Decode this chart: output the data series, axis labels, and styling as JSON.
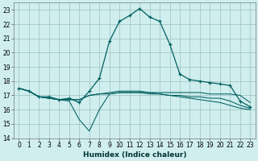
{
  "title": "",
  "xlabel": "Humidex (Indice chaleur)",
  "x": [
    0,
    1,
    2,
    3,
    4,
    5,
    6,
    7,
    8,
    9,
    10,
    11,
    12,
    13,
    14,
    15,
    16,
    17,
    18,
    19,
    20,
    21,
    22,
    23
  ],
  "line1": [
    17.5,
    17.3,
    16.9,
    16.9,
    16.7,
    16.8,
    16.5,
    17.3,
    18.2,
    20.8,
    22.2,
    22.6,
    23.1,
    22.5,
    22.2,
    20.6,
    18.5,
    18.1,
    18.0,
    17.9,
    17.8,
    17.7,
    16.6,
    16.2
  ],
  "line2": [
    17.5,
    17.3,
    16.9,
    16.8,
    16.7,
    16.6,
    15.3,
    14.5,
    16.0,
    17.1,
    17.2,
    17.2,
    17.2,
    17.2,
    17.2,
    17.2,
    17.2,
    17.2,
    17.2,
    17.1,
    17.1,
    17.1,
    17.0,
    16.5
  ],
  "line3": [
    17.5,
    17.3,
    16.9,
    16.8,
    16.7,
    16.7,
    16.7,
    17.0,
    17.1,
    17.1,
    17.2,
    17.2,
    17.2,
    17.1,
    17.1,
    17.0,
    17.0,
    16.9,
    16.9,
    16.8,
    16.8,
    16.6,
    16.3,
    16.1
  ],
  "line4": [
    17.5,
    17.3,
    16.9,
    16.8,
    16.7,
    16.7,
    16.7,
    17.0,
    17.1,
    17.2,
    17.3,
    17.3,
    17.3,
    17.2,
    17.1,
    17.0,
    16.9,
    16.8,
    16.7,
    16.6,
    16.5,
    16.3,
    16.1,
    16.0
  ],
  "line_color": "#005f5f",
  "bg_color": "#d0eeee",
  "grid_color": "#9bbfbf",
  "ylim": [
    14,
    23.5
  ],
  "xlim": [
    -0.5,
    23.5
  ],
  "yticks": [
    14,
    15,
    16,
    17,
    18,
    19,
    20,
    21,
    22,
    23
  ],
  "xticks": [
    0,
    1,
    2,
    3,
    4,
    5,
    6,
    7,
    8,
    9,
    10,
    11,
    12,
    13,
    14,
    15,
    16,
    17,
    18,
    19,
    20,
    21,
    22,
    23
  ],
  "xlabel_fontsize": 6.5,
  "tick_fontsize": 5.5
}
